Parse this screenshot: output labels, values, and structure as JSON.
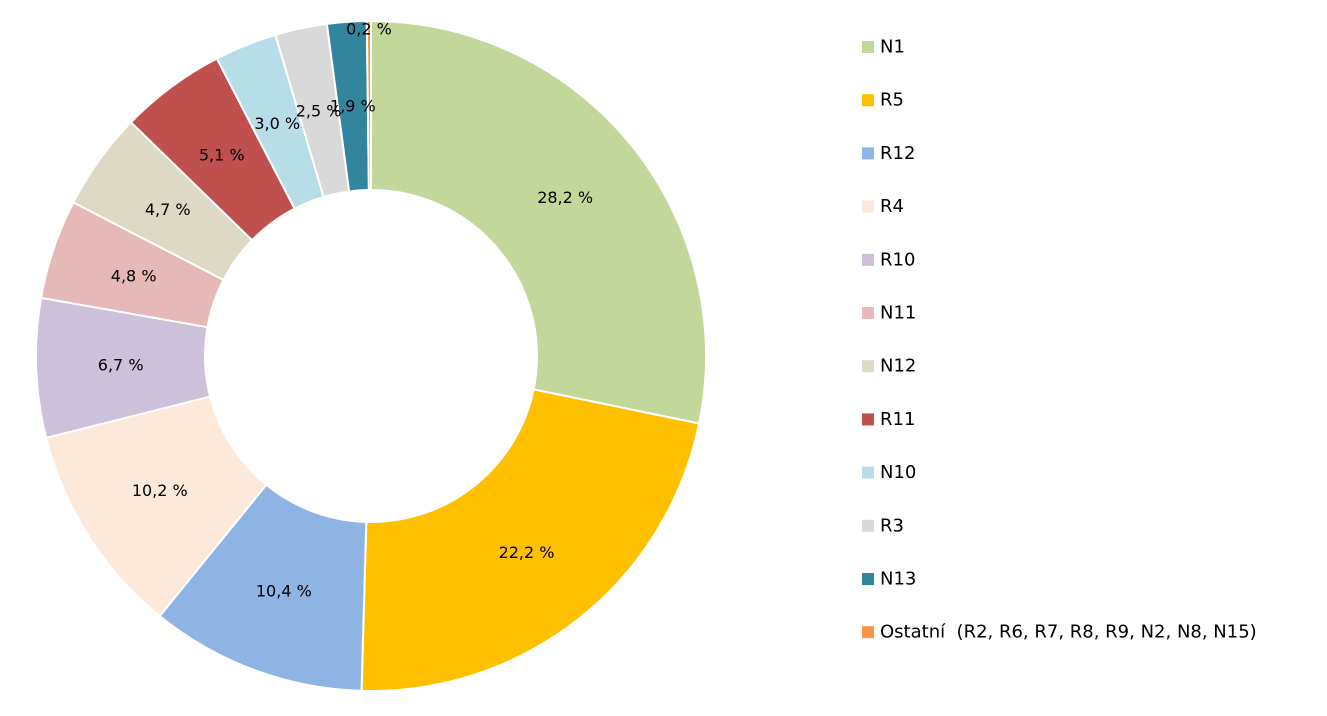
{
  "chart_data": {
    "type": "pie",
    "variant": "doughnut",
    "title": "",
    "value_suffix": " %",
    "decimal_separator": ",",
    "legend_position": "right",
    "series": [
      {
        "slices": [
          {
            "label": "N1",
            "value": 28.2,
            "display": "28,2 %",
            "color": "#c4d79b"
          },
          {
            "label": "R5",
            "value": 22.2,
            "display": "22,2 %",
            "color": "#ffc000"
          },
          {
            "label": "R12",
            "value": 10.4,
            "display": "10,4 %",
            "color": "#8db4e2"
          },
          {
            "label": "R4",
            "value": 10.2,
            "display": "10,2 %",
            "color": "#fde9d9"
          },
          {
            "label": "R10",
            "value": 6.7,
            "display": "6,7 %",
            "color": "#ccc0da"
          },
          {
            "label": "N11",
            "value": 4.8,
            "display": "4,8 %",
            "color": "#e6b8b7"
          },
          {
            "label": "N12",
            "value": 4.7,
            "display": "4,7 %",
            "color": "#ddd9c4"
          },
          {
            "label": "R11",
            "value": 5.1,
            "display": "5,1 %",
            "color": "#c0504d"
          },
          {
            "label": "N10",
            "value": 3.0,
            "display": "3,0 %",
            "color": "#b7dee8"
          },
          {
            "label": "R3",
            "value": 2.5,
            "display": "2,5 %",
            "color": "#d9d9d9"
          },
          {
            "label": "N13",
            "value": 1.9,
            "display": "1,9 %",
            "color": "#31859c"
          },
          {
            "label": "Ostatní  (R2, R6, R7, R8, R9, N2, N8, N15)",
            "value": 0.2,
            "display": "0,2 %",
            "color": "#f79646"
          }
        ]
      }
    ]
  }
}
